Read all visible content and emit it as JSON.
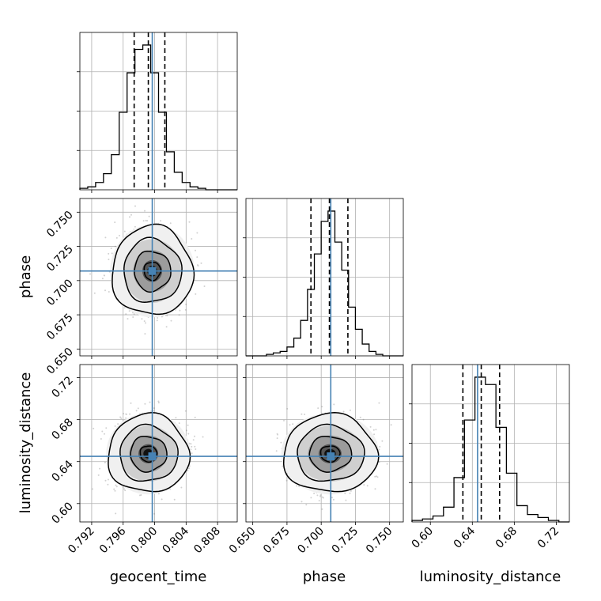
{
  "chart_data": {
    "type": "corner",
    "parameters": [
      "geocent_time",
      "phase",
      "luminosity_distance"
    ],
    "truths": {
      "geocent_time": 0.7997,
      "phase": 0.707,
      "luminosity_distance": 0.645
    },
    "marginals": [
      {
        "parameter": "geocent_time",
        "xlim": [
          0.7905,
          0.8105
        ],
        "bin_edges": [
          0.7905,
          0.7915,
          0.7925,
          0.7935,
          0.7945,
          0.7955,
          0.7965,
          0.7975,
          0.7985,
          0.7995,
          0.8005,
          0.8015,
          0.8025,
          0.8035,
          0.8045,
          0.8055,
          0.8065,
          0.8075,
          0.8085,
          0.8095,
          0.8105
        ],
        "counts": [
          1,
          2,
          5,
          11,
          24,
          53,
          80,
          96,
          99,
          80,
          53,
          26,
          12,
          5,
          2,
          1,
          0,
          0,
          0,
          0
        ],
        "quantiles": [
          0.7974,
          0.7992,
          0.8013
        ]
      },
      {
        "parameter": "phase",
        "xlim": [
          0.645,
          0.76
        ],
        "bin_edges": [
          0.645,
          0.65,
          0.655,
          0.66,
          0.665,
          0.67,
          0.675,
          0.68,
          0.685,
          0.69,
          0.695,
          0.7,
          0.705,
          0.71,
          0.715,
          0.72,
          0.725,
          0.73,
          0.735,
          0.74,
          0.745,
          0.75,
          0.755,
          0.76
        ],
        "counts": [
          0,
          0,
          0,
          1,
          2,
          3,
          6,
          12,
          24,
          45,
          69,
          91,
          98,
          77,
          58,
          33,
          18,
          8,
          3,
          1,
          0,
          0,
          0
        ],
        "quantiles": [
          0.6925,
          0.706,
          0.7195
        ]
      },
      {
        "parameter": "luminosity_distance",
        "xlim": [
          0.5825,
          0.7325
        ],
        "bin_edges": [
          0.5825,
          0.5925,
          0.6025,
          0.6125,
          0.6225,
          0.6325,
          0.6425,
          0.6525,
          0.6625,
          0.6725,
          0.6825,
          0.6925,
          0.7025,
          0.7125,
          0.7225,
          0.7325
        ],
        "counts": [
          1,
          2,
          4,
          10,
          30,
          69,
          98,
          93,
          64,
          33,
          11,
          5,
          3,
          1,
          0
        ],
        "quantiles": [
          0.631,
          0.6485,
          0.666
        ]
      }
    ],
    "joints": [
      {
        "x": "geocent_time",
        "y": "phase",
        "center": [
          0.7997,
          0.707
        ],
        "sigma": [
          0.0021,
          0.014
        ],
        "truth": [
          0.7997,
          0.707
        ]
      },
      {
        "x": "geocent_time",
        "y": "luminosity_distance",
        "center": [
          0.7992,
          0.6475
        ],
        "sigma": [
          0.0021,
          0.016
        ],
        "truth": [
          0.7997,
          0.645
        ]
      },
      {
        "x": "phase",
        "y": "luminosity_distance",
        "center": [
          0.7065,
          0.6475
        ],
        "sigma": [
          0.014,
          0.016
        ],
        "truth": [
          0.707,
          0.645
        ]
      }
    ],
    "ranges": {
      "geocent_time": [
        0.7905,
        0.8105
      ],
      "phase": [
        0.645,
        0.76
      ],
      "luminosity_distance": [
        0.5825,
        0.7325
      ]
    },
    "x_ticks": {
      "geocent_time": [
        "0.792",
        "0.796",
        "0.800",
        "0.804",
        "0.808"
      ],
      "phase": [
        "0.650",
        "0.675",
        "0.700",
        "0.725",
        "0.750"
      ],
      "luminosity_distance": [
        "0.60",
        "0.64",
        "0.68",
        "0.72"
      ]
    },
    "y_ticks": {
      "phase": [
        "0.650",
        "0.675",
        "0.700",
        "0.725",
        "0.750"
      ],
      "luminosity_distance": [
        "0.60",
        "0.64",
        "0.68",
        "0.72"
      ]
    },
    "x_axis_labels": [
      "geocent_time",
      "phase",
      "luminosity_distance"
    ],
    "y_axis_labels": [
      "phase",
      "luminosity_distance"
    ],
    "truth_color": "#4682b4",
    "grid": true
  }
}
